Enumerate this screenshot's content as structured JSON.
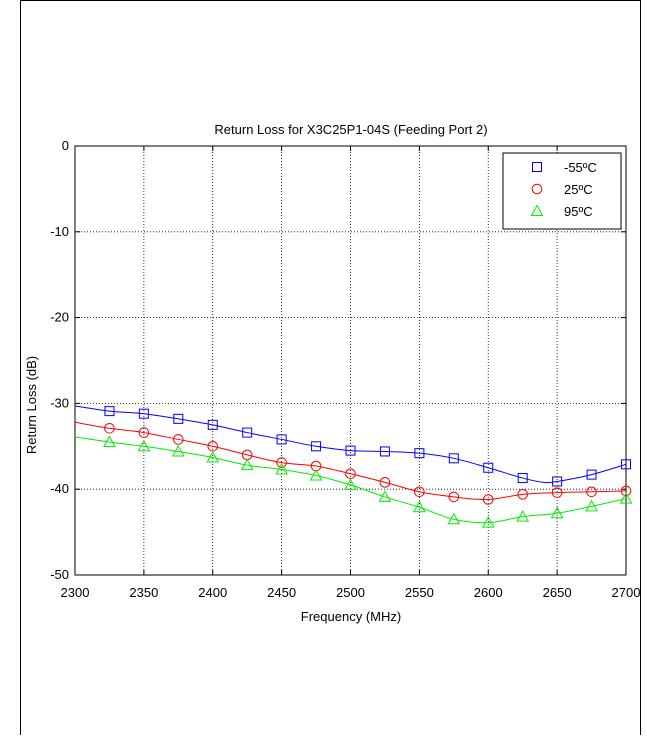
{
  "chart_data": {
    "type": "line",
    "title": "Return Loss for X3C25P1-04S (Feeding Port 2)",
    "xlabel": "Frequency (MHz)",
    "ylabel": "Return Loss (dB)",
    "xlim": [
      2300,
      2700
    ],
    "ylim": [
      -50,
      0
    ],
    "x_ticks": [
      "2300",
      "2350",
      "2400",
      "2450",
      "2500",
      "2550",
      "2600",
      "2650",
      "2700"
    ],
    "y_ticks": [
      "0",
      "-10",
      "-20",
      "-30",
      "-40",
      "-50"
    ],
    "grid": true,
    "legend_position": "top-right",
    "marker_x": [
      2325,
      2350,
      2375,
      2400,
      2425,
      2450,
      2475,
      2500,
      2525,
      2550,
      2575,
      2600,
      2625,
      2650,
      2675,
      2700
    ],
    "series": [
      {
        "name": "-55ºC",
        "color": "#0000ff",
        "marker": "square",
        "x": [
          2300,
          2325,
          2350,
          2375,
          2400,
          2425,
          2450,
          2475,
          2500,
          2525,
          2550,
          2575,
          2600,
          2625,
          2640,
          2650,
          2675,
          2700
        ],
        "y": [
          -30.3,
          -30.9,
          -31.2,
          -31.8,
          -32.5,
          -33.4,
          -34.2,
          -35.0,
          -35.5,
          -35.6,
          -35.8,
          -36.4,
          -37.5,
          -38.7,
          -39.2,
          -39.1,
          -38.3,
          -37.1
        ]
      },
      {
        "name": "25ºC",
        "color": "#ff0000",
        "marker": "circle",
        "x": [
          2300,
          2325,
          2350,
          2375,
          2400,
          2425,
          2450,
          2475,
          2500,
          2525,
          2550,
          2575,
          2600,
          2625,
          2650,
          2675,
          2700
        ],
        "y": [
          -32.2,
          -32.9,
          -33.4,
          -34.2,
          -35.0,
          -36.0,
          -36.9,
          -37.3,
          -38.2,
          -39.2,
          -40.3,
          -40.9,
          -41.2,
          -40.6,
          -40.4,
          -40.3,
          -40.2
        ]
      },
      {
        "name": "95ºC",
        "color": "#00ee00",
        "marker": "triangle",
        "x": [
          2300,
          2325,
          2350,
          2375,
          2400,
          2425,
          2450,
          2475,
          2500,
          2525,
          2550,
          2575,
          2600,
          2625,
          2650,
          2675,
          2700
        ],
        "y": [
          -33.9,
          -34.5,
          -35.0,
          -35.6,
          -36.3,
          -37.2,
          -37.7,
          -38.4,
          -39.5,
          -40.9,
          -42.1,
          -43.5,
          -43.9,
          -43.2,
          -42.8,
          -42.0,
          -41.1
        ]
      }
    ]
  }
}
